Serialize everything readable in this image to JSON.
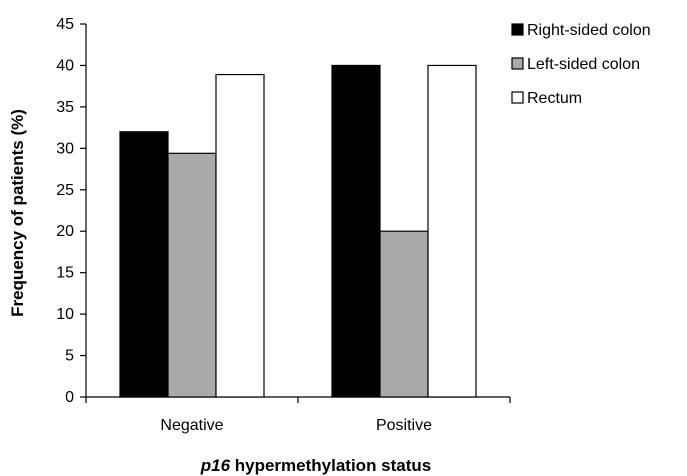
{
  "chart_data": {
    "type": "bar",
    "categories": [
      "Negative",
      "Positive"
    ],
    "series": [
      {
        "name": "Right-sided colon",
        "values": [
          32,
          40
        ],
        "color": "#000000"
      },
      {
        "name": "Left-sided colon",
        "values": [
          29.4,
          20
        ],
        "color": "#aaaaaa"
      },
      {
        "name": "Rectum",
        "values": [
          38.9,
          40
        ],
        "color": "#ffffff"
      }
    ],
    "ylim": [
      0,
      45
    ],
    "yticks": [
      0,
      5,
      10,
      15,
      20,
      25,
      30,
      35,
      40,
      45
    ],
    "ylabel": "Frequency of patients (%)",
    "xlabel_italic": "p16",
    "xlabel_rest": " hypermethylation status",
    "legend_position": "top-right",
    "grid": false
  }
}
